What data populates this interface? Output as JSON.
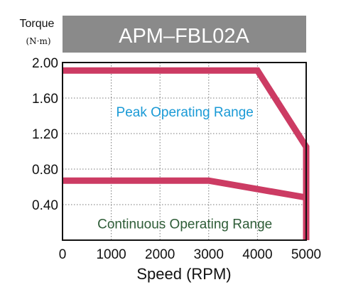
{
  "chart_data": {
    "type": "line",
    "title": "APM–FBL02A",
    "xlabel": "Speed (RPM)",
    "ylabel": "Torque",
    "yunit": "(N·m)",
    "xlim": [
      0,
      5000
    ],
    "ylim": [
      0,
      2.0
    ],
    "xticks": [
      "0",
      "1000",
      "2000",
      "3000",
      "4000",
      "5000"
    ],
    "yticks": [
      "2.00",
      "1.60",
      "1.20",
      "0.80",
      "0.40"
    ],
    "grid": true,
    "series": [
      {
        "x": [
          0,
          4000,
          5000,
          5000
        ],
        "y": [
          1.91,
          1.91,
          1.05,
          0.0
        ],
        "color": "#cc3b63"
      },
      {
        "x": [
          0,
          3000,
          5000
        ],
        "y": [
          0.67,
          0.67,
          0.48
        ],
        "color": "#cc3b63"
      }
    ],
    "annotations": [
      {
        "text": "Peak Operating Range",
        "x": 2000,
        "y": 1.45,
        "color": "#1a9ad6"
      },
      {
        "text": "Continuous Operating Range",
        "x": 2000,
        "y": 0.19,
        "color": "#2e5c37"
      }
    ],
    "colors": {
      "title_bar": "#8a8a8a",
      "curve": "#cc3b63"
    }
  }
}
